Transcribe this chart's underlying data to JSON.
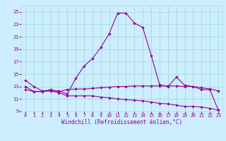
{
  "xlabel": "Windchill (Refroidissement éolien,°C)",
  "xlim": [
    -0.5,
    23.5
  ],
  "ylim": [
    9,
    26
  ],
  "yticks": [
    9,
    11,
    13,
    15,
    17,
    19,
    21,
    23,
    25
  ],
  "xticks": [
    0,
    1,
    2,
    3,
    4,
    5,
    6,
    7,
    8,
    9,
    10,
    11,
    12,
    13,
    14,
    15,
    16,
    17,
    18,
    19,
    20,
    21,
    22,
    23
  ],
  "bg_color": "#cceeff",
  "grid_color": "#aadddd",
  "line_color": "#990099",
  "line1_y": [
    14.0,
    13.0,
    12.3,
    12.3,
    12.3,
    11.8,
    14.3,
    16.3,
    17.5,
    19.3,
    21.5,
    24.8,
    24.8,
    23.2,
    22.5,
    18.0,
    13.3,
    13.0,
    14.5,
    13.2,
    13.0,
    12.5,
    12.5,
    9.2
  ],
  "line2_y": [
    13.0,
    12.2,
    12.2,
    12.5,
    12.2,
    12.5,
    12.6,
    12.6,
    12.7,
    12.8,
    12.9,
    13.0,
    13.0,
    13.1,
    13.1,
    13.1,
    13.1,
    13.1,
    13.1,
    13.0,
    13.0,
    12.8,
    12.6,
    12.3
  ],
  "line3_y": [
    12.5,
    12.2,
    12.2,
    12.3,
    12.0,
    11.5,
    11.5,
    11.5,
    11.5,
    11.3,
    11.2,
    11.0,
    10.9,
    10.8,
    10.7,
    10.5,
    10.3,
    10.2,
    10.0,
    9.8,
    9.8,
    9.7,
    9.5,
    9.2
  ]
}
